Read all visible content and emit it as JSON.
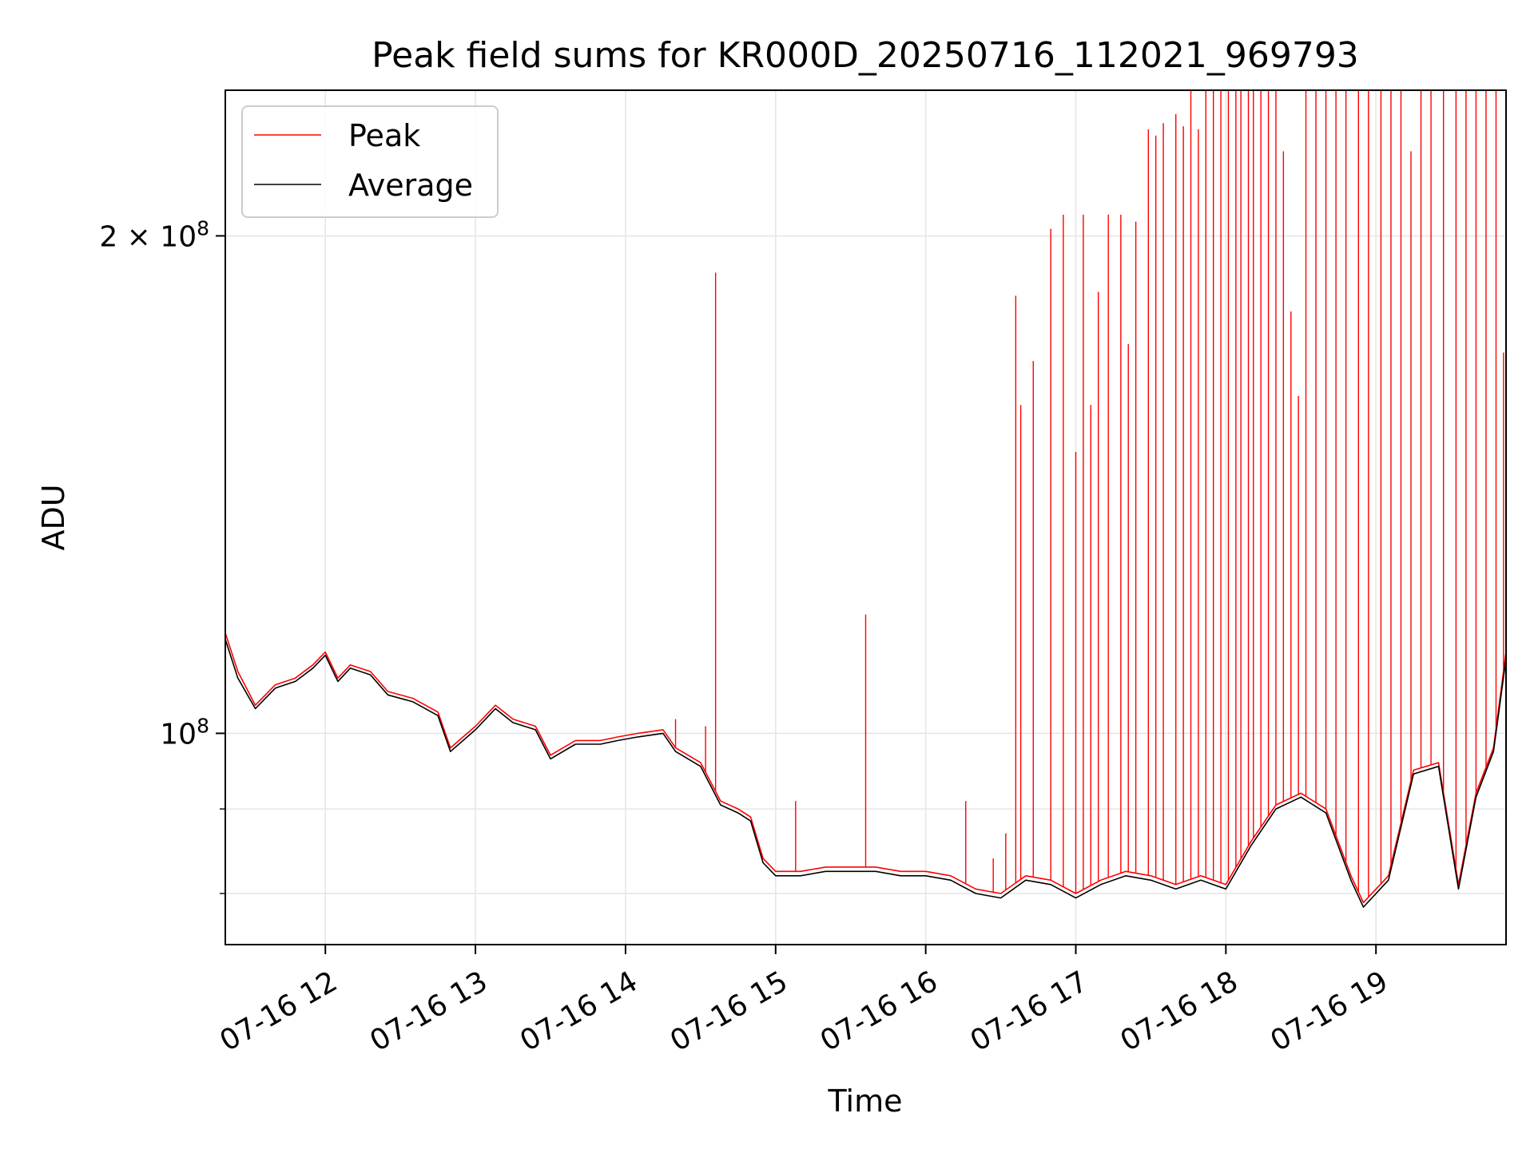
{
  "chart_data": {
    "type": "line",
    "title": "Peak field sums for KR000D_20250716_112021_969793",
    "xlabel": "Time",
    "ylabel": "ADU",
    "y_scale": "log",
    "grid": true,
    "legend_position": "upper-left",
    "x_range": [
      "07-16 11:20",
      "07-16 19:52"
    ],
    "ylim": [
      74500000,
      245000000
    ],
    "x_ticks": [
      {
        "t": "07-16 12:00",
        "label": "07-16 12"
      },
      {
        "t": "07-16 13:00",
        "label": "07-16 13"
      },
      {
        "t": "07-16 14:00",
        "label": "07-16 14"
      },
      {
        "t": "07-16 15:00",
        "label": "07-16 15"
      },
      {
        "t": "07-16 16:00",
        "label": "07-16 16"
      },
      {
        "t": "07-16 17:00",
        "label": "07-16 17"
      },
      {
        "t": "07-16 18:00",
        "label": "07-16 18"
      },
      {
        "t": "07-16 19:00",
        "label": "07-16 19"
      }
    ],
    "y_major_ticks": [
      {
        "value": 100000000,
        "base": "10",
        "exp": "8"
      },
      {
        "value": 200000000,
        "base": "2 × 10",
        "exp": "8"
      }
    ],
    "y_minor_ticks": [
      80000000,
      90000000
    ],
    "series": [
      {
        "name": "Peak",
        "color": "#ff0000",
        "points": [
          [
            "07-16 11:20",
            115000000
          ],
          [
            "07-16 11:25",
            109000000
          ],
          [
            "07-16 11:32",
            104000000
          ],
          [
            "07-16 11:40",
            107000000
          ],
          [
            "07-16 11:48",
            108000000
          ],
          [
            "07-16 11:55",
            110000000
          ],
          [
            "07-16 12:00",
            112000000
          ],
          [
            "07-16 12:05",
            108000000
          ],
          [
            "07-16 12:10",
            110000000
          ],
          [
            "07-16 12:18",
            109000000
          ],
          [
            "07-16 12:25",
            106000000
          ],
          [
            "07-16 12:35",
            105000000
          ],
          [
            "07-16 12:45",
            103000000
          ],
          [
            "07-16 12:50",
            98000000
          ],
          [
            "07-16 13:00",
            101000000
          ],
          [
            "07-16 13:08",
            104000000
          ],
          [
            "07-16 13:15",
            102000000
          ],
          [
            "07-16 13:24",
            101000000
          ],
          [
            "07-16 13:30",
            97000000
          ],
          [
            "07-16 13:40",
            99000000
          ],
          [
            "07-16 13:50",
            99000000
          ],
          [
            "07-16 13:57",
            99500000
          ],
          [
            "07-16 14:05",
            100000000
          ],
          [
            "07-16 14:15",
            100500000
          ],
          [
            "07-16 14:20",
            98000000
          ],
          [
            "07-16 14:30",
            96000000
          ],
          [
            "07-16 14:38",
            91000000
          ],
          [
            "07-16 14:45",
            90000000
          ],
          [
            "07-16 14:50",
            89000000
          ],
          [
            "07-16 14:55",
            84000000
          ],
          [
            "07-16 15:00",
            82500000
          ],
          [
            "07-16 15:10",
            82500000
          ],
          [
            "07-16 15:20",
            83000000
          ],
          [
            "07-16 15:30",
            83000000
          ],
          [
            "07-16 15:40",
            83000000
          ],
          [
            "07-16 15:50",
            82500000
          ],
          [
            "07-16 16:00",
            82500000
          ],
          [
            "07-16 16:10",
            82000000
          ],
          [
            "07-16 16:20",
            80500000
          ],
          [
            "07-16 16:30",
            80000000
          ],
          [
            "07-16 16:40",
            82000000
          ],
          [
            "07-16 16:50",
            81500000
          ],
          [
            "07-16 17:00",
            80000000
          ],
          [
            "07-16 17:10",
            81500000
          ],
          [
            "07-16 17:20",
            82500000
          ],
          [
            "07-16 17:30",
            82000000
          ],
          [
            "07-16 17:40",
            81000000
          ],
          [
            "07-16 17:50",
            82000000
          ],
          [
            "07-16 18:00",
            81000000
          ],
          [
            "07-16 18:10",
            86000000
          ],
          [
            "07-16 18:20",
            90500000
          ],
          [
            "07-16 18:30",
            92000000
          ],
          [
            "07-16 18:40",
            90000000
          ],
          [
            "07-16 18:50",
            82000000
          ],
          [
            "07-16 18:55",
            79000000
          ],
          [
            "07-16 19:05",
            82000000
          ],
          [
            "07-16 19:15",
            95000000
          ],
          [
            "07-16 19:25",
            96000000
          ],
          [
            "07-16 19:33",
            81000000
          ],
          [
            "07-16 19:40",
            92000000
          ],
          [
            "07-16 19:47",
            98000000
          ],
          [
            "07-16 19:52",
            112000000
          ]
        ],
        "spikes": [
          [
            "07-16 14:20",
            102000000
          ],
          [
            "07-16 14:32",
            101000000
          ],
          [
            "07-16 14:36",
            190000000
          ],
          [
            "07-16 15:08",
            91000000
          ],
          [
            "07-16 15:36",
            118000000
          ],
          [
            "07-16 16:16",
            91000000
          ],
          [
            "07-16 16:27",
            84000000
          ],
          [
            "07-16 16:32",
            87000000
          ],
          [
            "07-16 16:36",
            184000000
          ],
          [
            "07-16 16:38",
            158000000
          ],
          [
            "07-16 16:43",
            168000000
          ],
          [
            "07-16 16:50",
            202000000
          ],
          [
            "07-16 16:55",
            206000000
          ],
          [
            "07-16 17:00",
            148000000
          ],
          [
            "07-16 17:03",
            206000000
          ],
          [
            "07-16 17:06",
            158000000
          ],
          [
            "07-16 17:09",
            185000000
          ],
          [
            "07-16 17:13",
            206000000
          ],
          [
            "07-16 17:18",
            206000000
          ],
          [
            "07-16 17:21",
            172000000
          ],
          [
            "07-16 17:24",
            204000000
          ],
          [
            "07-16 17:29",
            232000000
          ],
          [
            "07-16 17:32",
            230000000
          ],
          [
            "07-16 17:35",
            234000000
          ],
          [
            "07-16 17:40",
            237000000
          ],
          [
            "07-16 17:43",
            233000000
          ],
          [
            "07-16 17:46",
            245000000
          ],
          [
            "07-16 17:49",
            232000000
          ],
          [
            "07-16 17:52",
            245000000
          ],
          [
            "07-16 17:55",
            245000000
          ],
          [
            "07-16 17:58",
            245000000
          ],
          [
            "07-16 18:01",
            245000000
          ],
          [
            "07-16 18:04",
            245000000
          ],
          [
            "07-16 18:06",
            245000000
          ],
          [
            "07-16 18:09",
            245000000
          ],
          [
            "07-16 18:11",
            245000000
          ],
          [
            "07-16 18:14",
            245000000
          ],
          [
            "07-16 18:17",
            245000000
          ],
          [
            "07-16 18:20",
            245000000
          ],
          [
            "07-16 18:23",
            225000000
          ],
          [
            "07-16 18:26",
            180000000
          ],
          [
            "07-16 18:29",
            160000000
          ],
          [
            "07-16 18:32",
            245000000
          ],
          [
            "07-16 18:36",
            245000000
          ],
          [
            "07-16 18:40",
            245000000
          ],
          [
            "07-16 18:44",
            245000000
          ],
          [
            "07-16 18:48",
            245000000
          ],
          [
            "07-16 18:53",
            245000000
          ],
          [
            "07-16 18:57",
            245000000
          ],
          [
            "07-16 19:02",
            245000000
          ],
          [
            "07-16 19:06",
            245000000
          ],
          [
            "07-16 19:10",
            245000000
          ],
          [
            "07-16 19:14",
            225000000
          ],
          [
            "07-16 19:18",
            245000000
          ],
          [
            "07-16 19:22",
            245000000
          ],
          [
            "07-16 19:27",
            245000000
          ],
          [
            "07-16 19:32",
            245000000
          ],
          [
            "07-16 19:36",
            245000000
          ],
          [
            "07-16 19:40",
            245000000
          ],
          [
            "07-16 19:44",
            245000000
          ],
          [
            "07-16 19:48",
            245000000
          ],
          [
            "07-16 19:51",
            170000000
          ]
        ]
      },
      {
        "name": "Average",
        "color": "#000000",
        "points": [
          [
            "07-16 11:20",
            114000000
          ],
          [
            "07-16 11:25",
            108000000
          ],
          [
            "07-16 11:32",
            103500000
          ],
          [
            "07-16 11:40",
            106500000
          ],
          [
            "07-16 11:48",
            107500000
          ],
          [
            "07-16 11:55",
            109500000
          ],
          [
            "07-16 12:00",
            111500000
          ],
          [
            "07-16 12:05",
            107500000
          ],
          [
            "07-16 12:10",
            109500000
          ],
          [
            "07-16 12:18",
            108500000
          ],
          [
            "07-16 12:25",
            105500000
          ],
          [
            "07-16 12:35",
            104500000
          ],
          [
            "07-16 12:45",
            102500000
          ],
          [
            "07-16 12:50",
            97500000
          ],
          [
            "07-16 13:00",
            100500000
          ],
          [
            "07-16 13:08",
            103500000
          ],
          [
            "07-16 13:15",
            101500000
          ],
          [
            "07-16 13:24",
            100500000
          ],
          [
            "07-16 13:30",
            96500000
          ],
          [
            "07-16 13:40",
            98500000
          ],
          [
            "07-16 13:50",
            98500000
          ],
          [
            "07-16 13:57",
            99000000
          ],
          [
            "07-16 14:05",
            99500000
          ],
          [
            "07-16 14:15",
            100000000
          ],
          [
            "07-16 14:20",
            97500000
          ],
          [
            "07-16 14:30",
            95500000
          ],
          [
            "07-16 14:38",
            90500000
          ],
          [
            "07-16 14:45",
            89500000
          ],
          [
            "07-16 14:50",
            88500000
          ],
          [
            "07-16 14:55",
            83500000
          ],
          [
            "07-16 15:00",
            82000000
          ],
          [
            "07-16 15:10",
            82000000
          ],
          [
            "07-16 15:20",
            82500000
          ],
          [
            "07-16 15:30",
            82500000
          ],
          [
            "07-16 15:40",
            82500000
          ],
          [
            "07-16 15:50",
            82000000
          ],
          [
            "07-16 16:00",
            82000000
          ],
          [
            "07-16 16:10",
            81500000
          ],
          [
            "07-16 16:20",
            80000000
          ],
          [
            "07-16 16:30",
            79500000
          ],
          [
            "07-16 16:40",
            81500000
          ],
          [
            "07-16 16:50",
            81000000
          ],
          [
            "07-16 17:00",
            79500000
          ],
          [
            "07-16 17:10",
            81000000
          ],
          [
            "07-16 17:20",
            82000000
          ],
          [
            "07-16 17:30",
            81500000
          ],
          [
            "07-16 17:40",
            80500000
          ],
          [
            "07-16 17:50",
            81500000
          ],
          [
            "07-16 18:00",
            80500000
          ],
          [
            "07-16 18:10",
            85500000
          ],
          [
            "07-16 18:20",
            90000000
          ],
          [
            "07-16 18:30",
            91500000
          ],
          [
            "07-16 18:40",
            89500000
          ],
          [
            "07-16 18:50",
            81500000
          ],
          [
            "07-16 18:55",
            78500000
          ],
          [
            "07-16 19:05",
            81500000
          ],
          [
            "07-16 19:15",
            94500000
          ],
          [
            "07-16 19:25",
            95500000
          ],
          [
            "07-16 19:33",
            80500000
          ],
          [
            "07-16 19:40",
            91500000
          ],
          [
            "07-16 19:47",
            97500000
          ],
          [
            "07-16 19:52",
            111000000
          ]
        ]
      }
    ]
  }
}
